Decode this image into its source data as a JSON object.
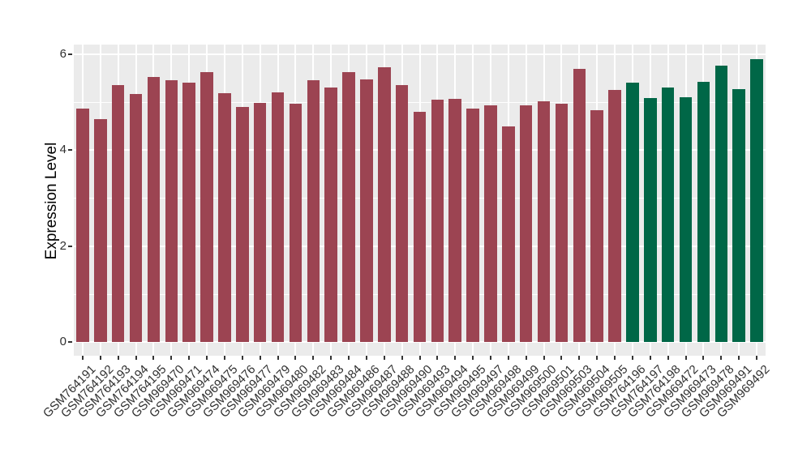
{
  "chart_data": {
    "type": "bar",
    "title": "",
    "xlabel": "",
    "ylabel": "Expression Level",
    "ylim": [
      0,
      6.2
    ],
    "yticks_major": [
      0,
      2,
      4,
      6
    ],
    "yticks_minor": [
      1,
      3,
      5
    ],
    "grid": true,
    "legend": "none",
    "panel_background": "#EBEBEB",
    "gridline_color": "#FFFFFF",
    "axis_text_color": "#303030",
    "categories": [
      "GSM764191",
      "GSM764192",
      "GSM764193",
      "GSM764194",
      "GSM764195",
      "GSM969470",
      "GSM969471",
      "GSM969474",
      "GSM969475",
      "GSM969476",
      "GSM969477",
      "GSM969479",
      "GSM969480",
      "GSM969482",
      "GSM969483",
      "GSM969484",
      "GSM969486",
      "GSM969487",
      "GSM969488",
      "GSM969490",
      "GSM969493",
      "GSM969494",
      "GSM969495",
      "GSM969497",
      "GSM969498",
      "GSM969499",
      "GSM969500",
      "GSM969501",
      "GSM969503",
      "GSM969504",
      "GSM969505",
      "GSM764196",
      "GSM764197",
      "GSM764198",
      "GSM969472",
      "GSM969473",
      "GSM969478",
      "GSM969491",
      "GSM969492"
    ],
    "values": [
      4.87,
      4.64,
      5.36,
      5.17,
      5.53,
      5.46,
      5.41,
      5.63,
      5.18,
      4.9,
      4.98,
      5.21,
      4.97,
      5.46,
      5.31,
      5.63,
      5.48,
      5.73,
      5.36,
      4.8,
      5.05,
      5.07,
      4.87,
      4.94,
      4.5,
      4.94,
      5.02,
      4.97,
      5.7,
      4.83,
      5.26,
      5.4,
      5.08,
      5.3,
      5.1,
      5.42,
      5.76,
      5.27,
      5.9
    ],
    "bar_color_index": [
      0,
      0,
      0,
      0,
      0,
      0,
      0,
      0,
      0,
      0,
      0,
      0,
      0,
      0,
      0,
      0,
      0,
      0,
      0,
      0,
      0,
      0,
      0,
      0,
      0,
      0,
      0,
      0,
      0,
      0,
      0,
      1,
      1,
      1,
      1,
      1,
      1,
      1,
      1
    ],
    "bar_colors": [
      "#9C4452",
      "#006747"
    ]
  }
}
